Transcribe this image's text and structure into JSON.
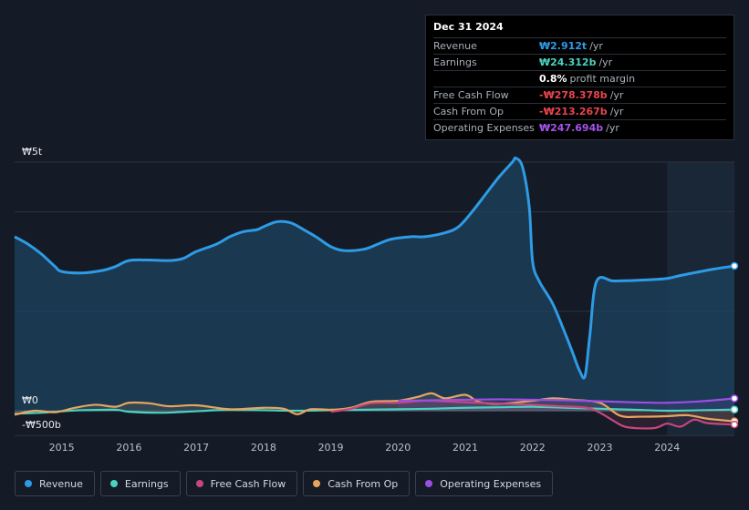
{
  "tooltip": {
    "date": "Dec 31 2024",
    "rows": [
      {
        "label": "Revenue",
        "value": "₩2.912t",
        "unit": "/yr",
        "color": "#2e9be6"
      },
      {
        "label": "Earnings",
        "value": "₩24.312b",
        "unit": "/yr",
        "color": "#49d3c0"
      },
      {
        "label": "",
        "value": "0.8%",
        "unit": "profit margin",
        "color": "#ffffff"
      },
      {
        "label": "Free Cash Flow",
        "value": "-₩278.378b",
        "unit": "/yr",
        "color": "#e8454f"
      },
      {
        "label": "Cash From Op",
        "value": "-₩213.267b",
        "unit": "/yr",
        "color": "#e8454f"
      },
      {
        "label": "Operating Expenses",
        "value": "₩247.694b",
        "unit": "/yr",
        "color": "#a453ec"
      }
    ]
  },
  "legend": [
    {
      "label": "Revenue",
      "color": "#2e9be6"
    },
    {
      "label": "Earnings",
      "color": "#49d3c0"
    },
    {
      "label": "Free Cash Flow",
      "color": "#c7467e"
    },
    {
      "label": "Cash From Op",
      "color": "#e6a55f"
    },
    {
      "label": "Operating Expenses",
      "color": "#9b4fe3"
    }
  ],
  "chart_data": {
    "type": "area",
    "y_tick_labels": [
      "₩5t",
      "₩0",
      "-₩500b"
    ],
    "ylim": [
      -500,
      5000
    ],
    "x_tick_labels": [
      "2015",
      "2016",
      "2017",
      "2018",
      "2019",
      "2020",
      "2021",
      "2022",
      "2023",
      "2024"
    ],
    "x_ticks": [
      2015,
      2016,
      2017,
      2018,
      2019,
      2020,
      2021,
      2022,
      2023,
      2024
    ],
    "xlim": [
      2014.3,
      2025.0
    ],
    "grid": true,
    "highlight_start": 2024.0,
    "series": [
      {
        "name": "Revenue",
        "color": "#2e9be6",
        "fill": true,
        "x": [
          2014.3,
          2014.5,
          2014.7,
          2014.9,
          2015.0,
          2015.3,
          2015.6,
          2015.8,
          2016.0,
          2016.3,
          2016.6,
          2016.8,
          2017.0,
          2017.3,
          2017.5,
          2017.7,
          2017.9,
          2018.0,
          2018.2,
          2018.4,
          2018.6,
          2018.8,
          2019.0,
          2019.2,
          2019.5,
          2019.7,
          2019.9,
          2020.2,
          2020.4,
          2020.7,
          2020.9,
          2021.1,
          2021.3,
          2021.5,
          2021.7,
          2021.75,
          2021.85,
          2021.95,
          2022.0,
          2022.1,
          2022.3,
          2022.5,
          2022.6,
          2022.7,
          2022.78,
          2022.85,
          2022.95,
          2023.2,
          2023.5,
          2023.8,
          2024.0,
          2024.2,
          2024.5,
          2024.7,
          2025.0
        ],
        "values": [
          3500,
          3350,
          3150,
          2900,
          2800,
          2770,
          2820,
          2900,
          3020,
          3030,
          3020,
          3060,
          3200,
          3350,
          3500,
          3600,
          3640,
          3700,
          3800,
          3780,
          3640,
          3480,
          3300,
          3220,
          3250,
          3350,
          3450,
          3500,
          3500,
          3580,
          3700,
          4000,
          4350,
          4700,
          5000,
          5080,
          4900,
          4100,
          3000,
          2600,
          2150,
          1500,
          1150,
          800,
          700,
          1500,
          2600,
          2610,
          2620,
          2640,
          2660,
          2720,
          2800,
          2850,
          2912
        ]
      },
      {
        "name": "Earnings",
        "color": "#49d3c0",
        "x": [
          2014.3,
          2014.7,
          2015.0,
          2015.3,
          2015.8,
          2016.0,
          2016.5,
          2017.0,
          2017.5,
          2018.0,
          2018.5,
          2019.0,
          2019.5,
          2020.0,
          2020.5,
          2021.0,
          2021.5,
          2022.0,
          2022.5,
          2023.0,
          2023.5,
          2024.0,
          2024.5,
          2025.0
        ],
        "values": [
          -60,
          -40,
          -10,
          10,
          20,
          -20,
          -40,
          -10,
          20,
          10,
          0,
          10,
          20,
          30,
          40,
          60,
          70,
          80,
          60,
          40,
          20,
          0,
          10,
          24
        ]
      },
      {
        "name": "Free Cash Flow",
        "color": "#c7467e",
        "x": [
          2019.0,
          2019.3,
          2019.6,
          2020.0,
          2020.4,
          2020.8,
          2021.2,
          2021.6,
          2022.0,
          2022.4,
          2022.8,
          2023.0,
          2023.2,
          2023.4,
          2023.8,
          2024.0,
          2024.2,
          2024.4,
          2024.6,
          2025.0
        ],
        "values": [
          -20,
          40,
          150,
          160,
          200,
          180,
          160,
          140,
          120,
          90,
          60,
          -40,
          -200,
          -330,
          -350,
          -260,
          -320,
          -180,
          -250,
          -278
        ]
      },
      {
        "name": "Cash From Op",
        "color": "#e6a55f",
        "x": [
          2014.3,
          2014.6,
          2014.9,
          2015.2,
          2015.5,
          2015.8,
          2016.0,
          2016.3,
          2016.6,
          2017.0,
          2017.5,
          2018.0,
          2018.3,
          2018.5,
          2018.7,
          2019.0,
          2019.3,
          2019.6,
          2020.0,
          2020.3,
          2020.5,
          2020.7,
          2021.0,
          2021.2,
          2021.5,
          2022.0,
          2022.3,
          2022.6,
          2023.0,
          2023.3,
          2023.6,
          2024.0,
          2024.3,
          2024.6,
          2025.0
        ],
        "values": [
          -80,
          0,
          -30,
          60,
          120,
          80,
          160,
          150,
          90,
          110,
          30,
          60,
          40,
          -70,
          30,
          20,
          60,
          180,
          200,
          280,
          350,
          250,
          320,
          180,
          140,
          200,
          250,
          220,
          160,
          -100,
          -120,
          -110,
          -90,
          -160,
          -213
        ]
      },
      {
        "name": "Operating Expenses",
        "color": "#9b4fe3",
        "x": [
          2020.0,
          2020.5,
          2021.0,
          2021.5,
          2022.0,
          2022.5,
          2023.0,
          2023.5,
          2024.0,
          2024.5,
          2025.0
        ],
        "values": [
          200,
          210,
          220,
          230,
          220,
          210,
          190,
          170,
          160,
          190,
          248
        ]
      }
    ]
  }
}
